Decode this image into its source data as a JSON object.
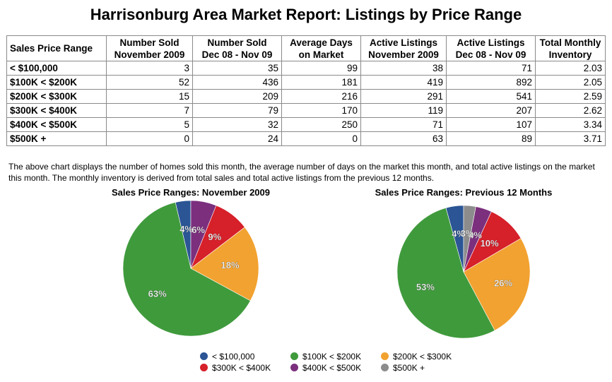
{
  "title": "Harrisonburg Area Market Report: Listings by Price Range",
  "table": {
    "headers": [
      [
        "Sales Price Range"
      ],
      [
        "Number Sold",
        "November 2009"
      ],
      [
        "Number Sold",
        "Dec 08 - Nov 09"
      ],
      [
        "Average Days",
        "on Market"
      ],
      [
        "Active Listings",
        "November 2009"
      ],
      [
        "Active Listings",
        "Dec 08 - Nov 09"
      ],
      [
        "Total Monthly",
        "Inventory"
      ]
    ],
    "rows": [
      [
        "< $100,000",
        "3",
        "35",
        "99",
        "38",
        "71",
        "2.03"
      ],
      [
        "$100K < $200K",
        "52",
        "436",
        "181",
        "419",
        "892",
        "2.05"
      ],
      [
        "$200K < $300K",
        "15",
        "209",
        "216",
        "291",
        "541",
        "2.59"
      ],
      [
        "$300K < $400K",
        "7",
        "79",
        "170",
        "119",
        "207",
        "2.62"
      ],
      [
        "$400K < $500K",
        "5",
        "32",
        "250",
        "71",
        "107",
        "3.34"
      ],
      [
        "$500K +",
        "0",
        "24",
        "0",
        "63",
        "89",
        "3.71"
      ]
    ]
  },
  "note": "The above chart displays the number of homes sold this month, the average number of days on the market this month, and total active listings on the market this month. The monthly inventory is derived from total sales and total active listings from the previous 12 months.",
  "chart_data": [
    {
      "type": "pie",
      "title": "Sales Price Ranges: November 2009",
      "categories": [
        "< $100,000",
        "$100K < $200K",
        "$200K < $300K",
        "$300K < $400K",
        "$400K < $500K",
        "$500K +"
      ],
      "values": [
        3,
        52,
        15,
        7,
        5,
        0
      ],
      "labels": [
        "4%",
        "63%",
        "18%",
        "9%",
        "6%",
        ""
      ],
      "colors": [
        "#2b5594",
        "#3f9a3c",
        "#f2a230",
        "#d6202a",
        "#7b2f7d",
        "#8c8c8c"
      ]
    },
    {
      "type": "pie",
      "title": "Sales Price Ranges: Previous 12 Months",
      "categories": [
        "< $100,000",
        "$100K < $200K",
        "$200K < $300K",
        "$300K < $400K",
        "$400K < $500K",
        "$500K +"
      ],
      "values": [
        35,
        436,
        209,
        79,
        32,
        24
      ],
      "labels": [
        "4%",
        "53%",
        "26%",
        "10%",
        "4%",
        "3%"
      ],
      "colors": [
        "#2b5594",
        "#3f9a3c",
        "#f2a230",
        "#d6202a",
        "#7b2f7d",
        "#8c8c8c"
      ]
    }
  ],
  "legend": {
    "items": [
      {
        "label": "< $100,000",
        "color": "#2b5594"
      },
      {
        "label": "$100K < $200K",
        "color": "#3f9a3c"
      },
      {
        "label": "$200K < $300K",
        "color": "#f2a230"
      },
      {
        "label": "$300K < $400K",
        "color": "#d6202a"
      },
      {
        "label": "$400K < $500K",
        "color": "#7b2f7d"
      },
      {
        "label": "$500K +",
        "color": "#8c8c8c"
      }
    ]
  }
}
